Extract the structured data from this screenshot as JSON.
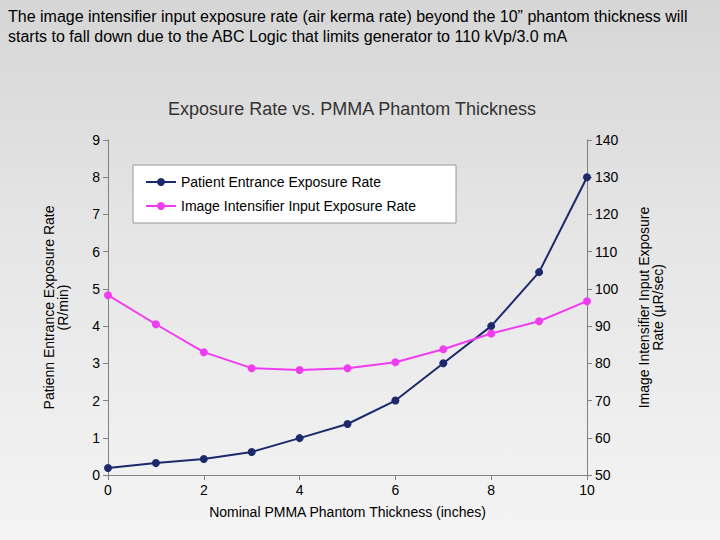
{
  "chart_data": {
    "type": "line",
    "annotation": "The image intensifier input exposure rate (air kerma rate) beyond the 10” phantom thickness will starts to fall down due to the ABC Logic that limits generator to 110 kVp/3.0 mA",
    "title": "Exposure Rate vs. PMMA Phantom Thickness",
    "x_label": "Nominal PMMA Phantom Thickness (inches)",
    "y_label": "Patienn Entrance Exposure Rate\n(R/min)",
    "y2_label": "Image Intensifier Input Exposure\nRate (µR/sec)",
    "x": [
      0,
      1,
      2,
      3,
      4,
      5,
      6,
      7,
      8,
      9,
      10
    ],
    "series": [
      {
        "name": "Patient Entrance Exposure Rate",
        "color": "#1c2a6b",
        "marker": "circle",
        "values": [
          0.19,
          0.32,
          0.43,
          0.62,
          0.99,
          1.37,
          2.0,
          3.0,
          4.0,
          5.45,
          8.0
        ]
      },
      {
        "name": "Image Intensifier Input Exposure Rate",
        "color": "#f03cf0",
        "marker": "circle",
        "axis": "y2",
        "values": [
          98.3,
          90.5,
          83.0,
          78.7,
          78.2,
          78.7,
          80.3,
          83.8,
          88.0,
          91.3,
          96.7
        ]
      }
    ],
    "xlim": [
      0,
      10
    ],
    "xticks": [
      0,
      2,
      4,
      6,
      8,
      10
    ],
    "ylim": [
      0,
      9
    ],
    "yticks": [
      0,
      1,
      2,
      3,
      4,
      5,
      6,
      7,
      8,
      9
    ],
    "y2lim": [
      50,
      140
    ],
    "y2ticks": [
      50,
      60,
      70,
      80,
      90,
      100,
      110,
      120,
      130,
      140
    ],
    "grid": false,
    "legend": "upper left"
  }
}
